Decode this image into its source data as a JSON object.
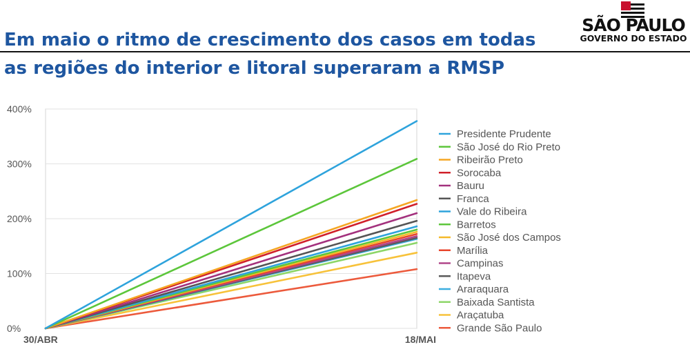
{
  "header": {
    "title_line1": "Em maio o ritmo de crescimento dos casos em todas",
    "title_line2": "as regiões do interior e litoral superaram a RMSP",
    "logo_name": "SÃO PAULO",
    "logo_sub": "GOVERNO DO ESTADO"
  },
  "chart_data": {
    "type": "line",
    "x": [
      "30/ABR",
      "18/MAI"
    ],
    "ylim": [
      0,
      400
    ],
    "yticks": [
      "0%",
      "100%",
      "200%",
      "300%",
      "400%"
    ],
    "grid": true,
    "legend_position": "right",
    "series": [
      {
        "name": "Presidente Prudente",
        "color": "#2ea3dc",
        "values": [
          0,
          378
        ]
      },
      {
        "name": "São José do Rio Preto",
        "color": "#5cc63b",
        "values": [
          0,
          309
        ]
      },
      {
        "name": "Ribeirão Preto",
        "color": "#f5a623",
        "values": [
          0,
          234
        ]
      },
      {
        "name": "Sorocaba",
        "color": "#d0202a",
        "values": [
          0,
          227
        ]
      },
      {
        "name": "Bauru",
        "color": "#a3317d",
        "values": [
          0,
          210
        ]
      },
      {
        "name": "Franca",
        "color": "#555555",
        "values": [
          0,
          196
        ]
      },
      {
        "name": "Vale do Ribeira",
        "color": "#2ea3dc",
        "values": [
          0,
          186
        ]
      },
      {
        "name": "Barretos",
        "color": "#5cc63b",
        "values": [
          0,
          180
        ]
      },
      {
        "name": "São José dos Campos",
        "color": "#f5b92a",
        "values": [
          0,
          176
        ]
      },
      {
        "name": "Marília",
        "color": "#e8452c",
        "values": [
          0,
          172
        ]
      },
      {
        "name": "Campinas",
        "color": "#b0468a",
        "values": [
          0,
          168
        ]
      },
      {
        "name": "Itapeva",
        "color": "#5a5a5a",
        "values": [
          0,
          165
        ]
      },
      {
        "name": "Araraquara",
        "color": "#3aaee0",
        "values": [
          0,
          163
        ]
      },
      {
        "name": "Baixada Santista",
        "color": "#8dd668",
        "values": [
          0,
          156
        ]
      },
      {
        "name": "Araçatuba",
        "color": "#f7c23a",
        "values": [
          0,
          138
        ]
      },
      {
        "name": "Grande São Paulo",
        "color": "#ec5a3c",
        "values": [
          0,
          108
        ]
      }
    ]
  }
}
